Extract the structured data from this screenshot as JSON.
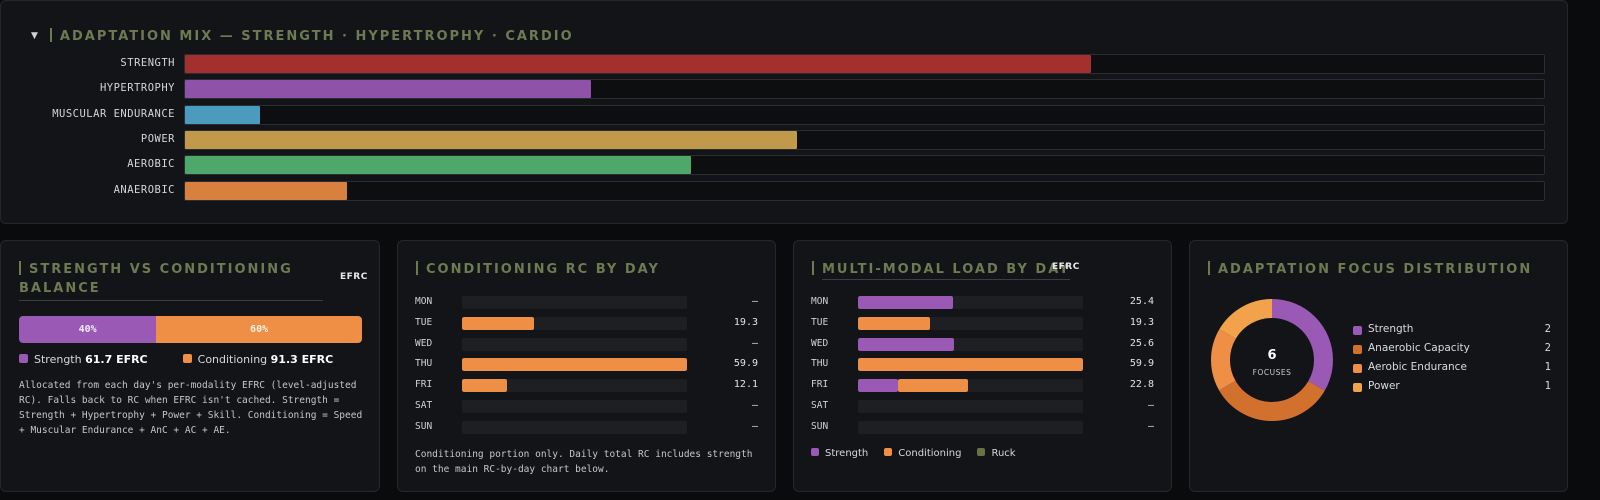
{
  "mix": {
    "title": "ADAPTATION MIX — STRENGTH · HYPERTROPHY · CARDIO",
    "caret": "▼",
    "rows": [
      {
        "label": "STRENGTH",
        "fraction": 0.667,
        "color": "#a3302e"
      },
      {
        "label": "HYPERTROPHY",
        "fraction": 0.299,
        "color": "#8e52a8"
      },
      {
        "label": "MUSCULAR ENDURANCE",
        "fraction": 0.055,
        "color": "#4a9bbd"
      },
      {
        "label": "POWER",
        "fraction": 0.45,
        "color": "#c09a4a"
      },
      {
        "label": "AEROBIC",
        "fraction": 0.372,
        "color": "#4ea86a"
      },
      {
        "label": "ANAEROBIC",
        "fraction": 0.119,
        "color": "#d8803e"
      }
    ]
  },
  "balance": {
    "title": "STRENGTH VS CONDITIONING BALANCE",
    "tag": "EFRC",
    "strength_pct": "40%",
    "conditioning_pct": "60%",
    "strength_label": "Strength",
    "strength_value": "61.7 EFRC",
    "conditioning_label": "Conditioning",
    "conditioning_value": "91.3 EFRC",
    "note": "Allocated from each day's per-modality EFRC (level-adjusted RC). Falls back to RC when EFRC isn't cached. Strength = Strength + Hypertrophy + Power + Skill. Conditioning = Speed + Muscular Endurance + AnC + AC + AE.",
    "colors": {
      "strength": "#9b59b6",
      "conditioning": "#ef8f45"
    }
  },
  "conditioning": {
    "title": "CONDITIONING RC BY DAY",
    "days": [
      {
        "day": "MON",
        "value": "—",
        "frac": 0
      },
      {
        "day": "TUE",
        "value": "19.3",
        "frac": 0.322
      },
      {
        "day": "WED",
        "value": "—",
        "frac": 0
      },
      {
        "day": "THU",
        "value": "59.9",
        "frac": 1.0
      },
      {
        "day": "FRI",
        "value": "12.1",
        "frac": 0.202
      },
      {
        "day": "SAT",
        "value": "—",
        "frac": 0
      },
      {
        "day": "SUN",
        "value": "—",
        "frac": 0
      }
    ],
    "note": "Conditioning portion only. Daily total RC includes strength on the main RC-by-day chart below.",
    "color": "#ef8f45"
  },
  "multimodal": {
    "title": "MULTI-MODAL LOAD BY DAY",
    "tag": "EFRC",
    "days": [
      {
        "day": "MON",
        "value": "25.4",
        "strength": 0.424,
        "conditioning": 0
      },
      {
        "day": "TUE",
        "value": "19.3",
        "strength": 0,
        "conditioning": 0.322
      },
      {
        "day": "WED",
        "value": "25.6",
        "strength": 0.427,
        "conditioning": 0
      },
      {
        "day": "THU",
        "value": "59.9",
        "strength": 0,
        "conditioning": 1.0
      },
      {
        "day": "FRI",
        "value": "22.8",
        "strength": 0.178,
        "conditioning": 0.202
      },
      {
        "day": "SAT",
        "value": "—",
        "strength": 0,
        "conditioning": 0
      },
      {
        "day": "SUN",
        "value": "—",
        "strength": 0,
        "conditioning": 0
      }
    ],
    "legend": [
      {
        "label": "Strength",
        "color": "#9b59b6"
      },
      {
        "label": "Conditioning",
        "color": "#ef8f45"
      },
      {
        "label": "Ruck",
        "color": "#6b7048"
      }
    ]
  },
  "focus": {
    "title": "ADAPTATION FOCUS DISTRIBUTION",
    "center_value": "6",
    "center_label": "FOCUSES",
    "items": [
      {
        "label": "Strength",
        "count": "2",
        "value": 2,
        "color": "#9b59b6"
      },
      {
        "label": "Anaerobic Capacity",
        "count": "2",
        "value": 2,
        "color": "#d2702e"
      },
      {
        "label": "Aerobic Endurance",
        "count": "1",
        "value": 1,
        "color": "#ef8f45"
      },
      {
        "label": "Power",
        "count": "1",
        "value": 1,
        "color": "#f2a24a"
      }
    ]
  }
}
